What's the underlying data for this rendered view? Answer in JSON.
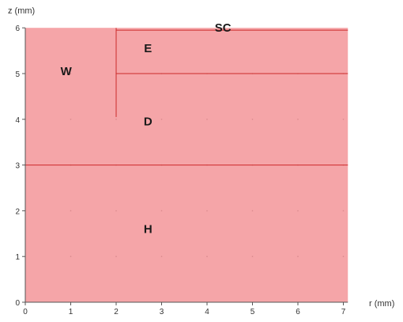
{
  "chart_data": {
    "type": "diagram",
    "xlabel": "r (mm)",
    "ylabel": "z (mm)",
    "xlim": [
      0,
      7.1
    ],
    "ylim": [
      0,
      6
    ],
    "x_ticks": [
      0,
      1,
      2,
      3,
      4,
      5,
      6,
      7
    ],
    "y_ticks": [
      0,
      1,
      2,
      3,
      4,
      5,
      6
    ],
    "x_tick_labels": [
      "0",
      "1",
      "2",
      "3",
      "4",
      "5",
      "6",
      "7"
    ],
    "y_tick_labels": [
      "0",
      "1",
      "2",
      "3",
      "4",
      "5",
      "6"
    ],
    "domain_fill": "#f5a5a8",
    "line_color": "#cc2a2a",
    "boundaries": [
      {
        "name": "boundary-z-3",
        "x": [
          0,
          7.1
        ],
        "y": [
          3,
          3
        ]
      },
      {
        "name": "boundary-z-5",
        "x": [
          2,
          7.1
        ],
        "y": [
          5,
          5
        ]
      },
      {
        "name": "boundary-z-5.95",
        "x": [
          2,
          7.1
        ],
        "y": [
          5.95,
          5.95
        ]
      },
      {
        "name": "boundary-r-2",
        "x": [
          2,
          2
        ],
        "y": [
          4.05,
          6
        ]
      }
    ],
    "regions": [
      {
        "id": "W",
        "label": "W",
        "x": 0.9,
        "y": 5.05
      },
      {
        "id": "SC",
        "label": "SC",
        "x": 4.35,
        "y": 6.0
      },
      {
        "id": "E",
        "label": "E",
        "x": 2.7,
        "y": 5.55
      },
      {
        "id": "D",
        "label": "D",
        "x": 2.7,
        "y": 3.95
      },
      {
        "id": "H",
        "label": "H",
        "x": 2.7,
        "y": 1.6
      }
    ]
  }
}
